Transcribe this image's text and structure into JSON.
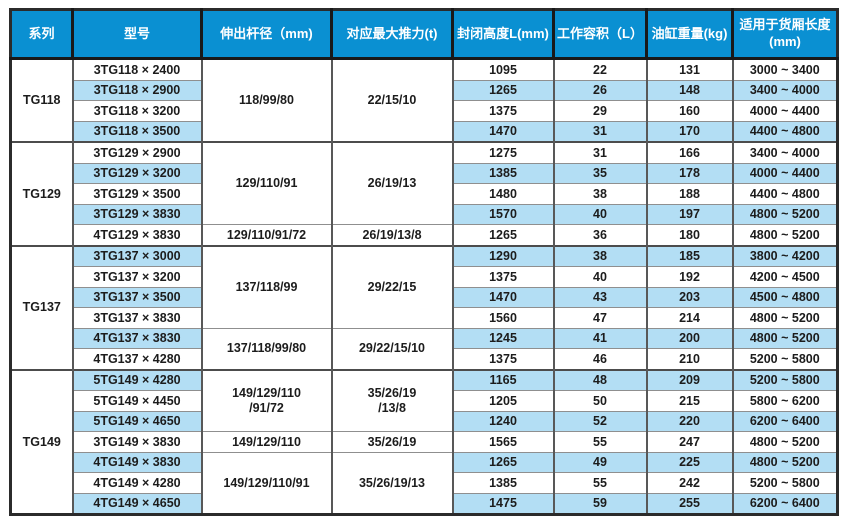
{
  "colors": {
    "header_bg": "#0a90d2",
    "header_text": "#ffffff",
    "row_alt_bg": "#b3def4",
    "body_text": "#1c1c1c",
    "grid_line": "#8f8f8f"
  },
  "table": {
    "headers": [
      "系列",
      "型号",
      "伸出杆径（mm)",
      "对应最大推力(t)",
      "封闭高度L(mm)",
      "工作容积（L）",
      "油缸重量(kg)",
      "适用于货厢长度\n(mm)"
    ],
    "groups": [
      {
        "series": "TG118",
        "merges": [
          {
            "rod": "118/99/80",
            "thrust": "22/15/10",
            "span": 4
          }
        ],
        "rows": [
          {
            "model": "3TG118 × 2400",
            "closed_height": "1095",
            "working_volume": "22",
            "cylinder_weight": "131",
            "box_length": "3000 ~ 3400"
          },
          {
            "model": "3TG118 × 2900",
            "closed_height": "1265",
            "working_volume": "26",
            "cylinder_weight": "148",
            "box_length": "3400 ~ 4000"
          },
          {
            "model": "3TG118 × 3200",
            "closed_height": "1375",
            "working_volume": "29",
            "cylinder_weight": "160",
            "box_length": "4000 ~ 4400"
          },
          {
            "model": "3TG118 × 3500",
            "closed_height": "1470",
            "working_volume": "31",
            "cylinder_weight": "170",
            "box_length": "4400 ~ 4800"
          }
        ]
      },
      {
        "series": "TG129",
        "merges": [
          {
            "rod": "129/110/91",
            "thrust": "26/19/13",
            "span": 4
          },
          {
            "rod": "129/110/91/72",
            "thrust": "26/19/13/8",
            "span": 1
          }
        ],
        "rows": [
          {
            "model": "3TG129 × 2900",
            "closed_height": "1275",
            "working_volume": "31",
            "cylinder_weight": "166",
            "box_length": "3400 ~ 4000"
          },
          {
            "model": "3TG129 × 3200",
            "closed_height": "1385",
            "working_volume": "35",
            "cylinder_weight": "178",
            "box_length": "4000 ~ 4400"
          },
          {
            "model": "3TG129 × 3500",
            "closed_height": "1480",
            "working_volume": "38",
            "cylinder_weight": "188",
            "box_length": "4400 ~ 4800"
          },
          {
            "model": "3TG129 × 3830",
            "closed_height": "1570",
            "working_volume": "40",
            "cylinder_weight": "197",
            "box_length": "4800 ~ 5200"
          },
          {
            "model": "4TG129 × 3830",
            "closed_height": "1265",
            "working_volume": "36",
            "cylinder_weight": "180",
            "box_length": "4800 ~ 5200"
          }
        ]
      },
      {
        "series": "TG137",
        "merges": [
          {
            "rod": "137/118/99",
            "thrust": "29/22/15",
            "span": 4
          },
          {
            "rod": "137/118/99/80",
            "thrust": "29/22/15/10",
            "span": 2
          }
        ],
        "rows": [
          {
            "model": "3TG137 × 3000",
            "closed_height": "1290",
            "working_volume": "38",
            "cylinder_weight": "185",
            "box_length": "3800 ~ 4200"
          },
          {
            "model": "3TG137 × 3200",
            "closed_height": "1375",
            "working_volume": "40",
            "cylinder_weight": "192",
            "box_length": "4200 ~ 4500"
          },
          {
            "model": "3TG137 × 3500",
            "closed_height": "1470",
            "working_volume": "43",
            "cylinder_weight": "203",
            "box_length": "4500 ~ 4800"
          },
          {
            "model": "3TG137 × 3830",
            "closed_height": "1560",
            "working_volume": "47",
            "cylinder_weight": "214",
            "box_length": "4800 ~ 5200"
          },
          {
            "model": "4TG137 × 3830",
            "closed_height": "1245",
            "working_volume": "41",
            "cylinder_weight": "200",
            "box_length": "4800 ~ 5200"
          },
          {
            "model": "4TG137 × 4280",
            "closed_height": "1375",
            "working_volume": "46",
            "cylinder_weight": "210",
            "box_length": "5200 ~ 5800"
          }
        ]
      },
      {
        "series": "TG149",
        "merges": [
          {
            "rod": "149/129/110\n/91/72",
            "thrust": "35/26/19\n/13/8",
            "span": 3
          },
          {
            "rod": "149/129/110",
            "thrust": "35/26/19",
            "span": 1
          },
          {
            "rod": "149/129/110/91",
            "thrust": "35/26/19/13",
            "span": 3
          }
        ],
        "rows": [
          {
            "model": "5TG149 × 4280",
            "closed_height": "1165",
            "working_volume": "48",
            "cylinder_weight": "209",
            "box_length": "5200 ~ 5800"
          },
          {
            "model": "5TG149 × 4450",
            "closed_height": "1205",
            "working_volume": "50",
            "cylinder_weight": "215",
            "box_length": "5800 ~ 6200"
          },
          {
            "model": "5TG149 × 4650",
            "closed_height": "1240",
            "working_volume": "52",
            "cylinder_weight": "220",
            "box_length": "6200 ~ 6400"
          },
          {
            "model": "3TG149 × 3830",
            "closed_height": "1565",
            "working_volume": "55",
            "cylinder_weight": "247",
            "box_length": "4800 ~ 5200"
          },
          {
            "model": "4TG149 × 3830",
            "closed_height": "1265",
            "working_volume": "49",
            "cylinder_weight": "225",
            "box_length": "4800 ~ 5200"
          },
          {
            "model": "4TG149 × 4280",
            "closed_height": "1385",
            "working_volume": "55",
            "cylinder_weight": "242",
            "box_length": "5200 ~ 5800"
          },
          {
            "model": "4TG149 × 4650",
            "closed_height": "1475",
            "working_volume": "59",
            "cylinder_weight": "255",
            "box_length": "6200 ~ 6400"
          }
        ]
      }
    ]
  }
}
